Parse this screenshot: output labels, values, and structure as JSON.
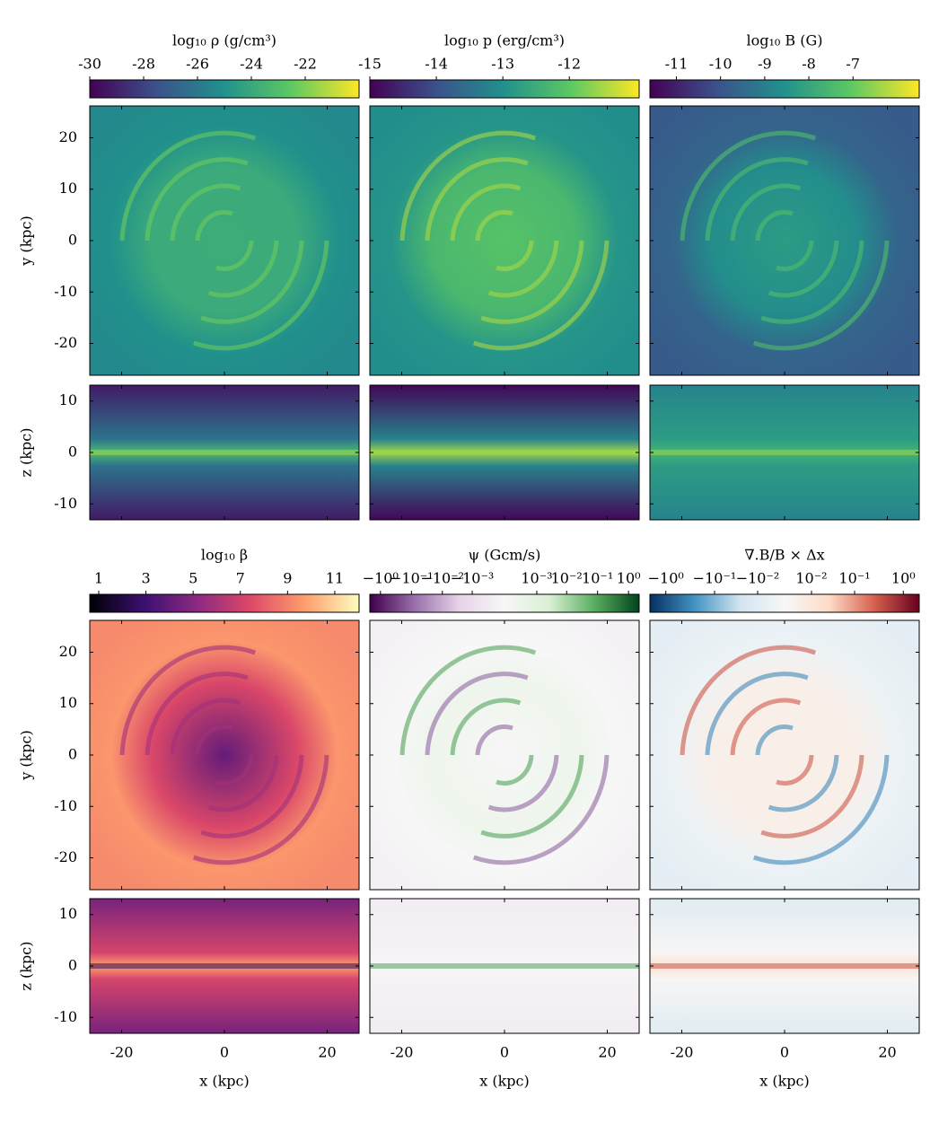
{
  "chart_data": {
    "type": "heatmap-grid",
    "x_label": "x (kpc)",
    "y_label": "y (kpc)",
    "z_label": "z (kpc)",
    "xlim": [
      -26.2,
      26.2
    ],
    "xticks": [
      -20,
      0,
      20
    ],
    "ylim": [
      -26.2,
      26.2
    ],
    "yticks": [
      -20,
      -10,
      0,
      10,
      20
    ],
    "zlim": [
      -13.1,
      13.1
    ],
    "zticks": [
      -10,
      0,
      10
    ],
    "panels": [
      {
        "type": "heatmap",
        "colorbar_label": "log₁₀ ρ (g/cm³)",
        "scale": "linear",
        "clim": [
          -30,
          -20
        ],
        "cticks": [
          -30,
          -28,
          -26,
          -24,
          -22
        ],
        "colors": [
          "#440154",
          "#3b528b",
          "#21918c",
          "#5ec962",
          "#fde725"
        ]
      },
      {
        "type": "heatmap",
        "colorbar_label": "log₁₀ p (erg/cm³)",
        "scale": "linear",
        "clim": [
          -15,
          -10.95
        ],
        "cticks": [
          -15,
          -14,
          -13,
          -12
        ],
        "colors": [
          "#440154",
          "#3b528b",
          "#21918c",
          "#5ec962",
          "#fde725"
        ]
      },
      {
        "type": "heatmap",
        "colorbar_label": "log₁₀ B (G)",
        "scale": "linear",
        "clim": [
          -11.6,
          -5.5
        ],
        "cticks": [
          -11,
          -10,
          -9,
          -8,
          -7
        ],
        "colors": [
          "#440154",
          "#3b528b",
          "#21918c",
          "#5ec962",
          "#fde725"
        ]
      },
      {
        "type": "heatmap",
        "colorbar_label": "log₁₀ β",
        "scale": "linear",
        "clim": [
          0.62,
          12.03
        ],
        "cticks": [
          1,
          3,
          5,
          7,
          9,
          11
        ],
        "colors": [
          "#000004",
          "#3b0f70",
          "#8c2981",
          "#de4968",
          "#fe9f6d",
          "#fcfdbf"
        ]
      },
      {
        "type": "heatmap",
        "colorbar_label": "ψ (Gcm/s)",
        "scale": "symlog",
        "linthresh": 0.0001,
        "clim": [
          -2.2,
          2.2
        ],
        "cticks": [
          {
            "value": -1,
            "label": "−10⁰"
          },
          {
            "value": -0.1,
            "label": "−10⁻¹"
          },
          {
            "value": -0.01,
            "label": "−10⁻²"
          },
          {
            "value": -0.001,
            "label": "−10⁻³"
          },
          {
            "value": 0.001,
            "label": "10⁻³"
          },
          {
            "value": 0.01,
            "label": "10⁻²"
          },
          {
            "value": 0.1,
            "label": "10⁻¹"
          },
          {
            "value": 1,
            "label": "10⁰"
          }
        ],
        "colors": [
          "#40004b",
          "#9970ab",
          "#e7d4e8",
          "#f7f7f7",
          "#d9f0d3",
          "#5aae61",
          "#00441b"
        ]
      },
      {
        "type": "heatmap",
        "colorbar_label": "∇.B/B × Δx",
        "scale": "symlog",
        "linthresh": 0.004,
        "clim": [
          -2.1,
          2.1
        ],
        "cticks": [
          {
            "value": -1,
            "label": "−10⁰"
          },
          {
            "value": -0.1,
            "label": "−10⁻¹"
          },
          {
            "value": -0.01,
            "label": "−10⁻²"
          },
          {
            "value": 0.01,
            "label": "10⁻²"
          },
          {
            "value": 0.1,
            "label": "10⁻¹"
          },
          {
            "value": 1,
            "label": "10⁰"
          }
        ],
        "colors": [
          "#053061",
          "#4393c3",
          "#d1e5f0",
          "#f7f7f7",
          "#fddbc7",
          "#d6604d",
          "#67001f"
        ]
      }
    ]
  }
}
